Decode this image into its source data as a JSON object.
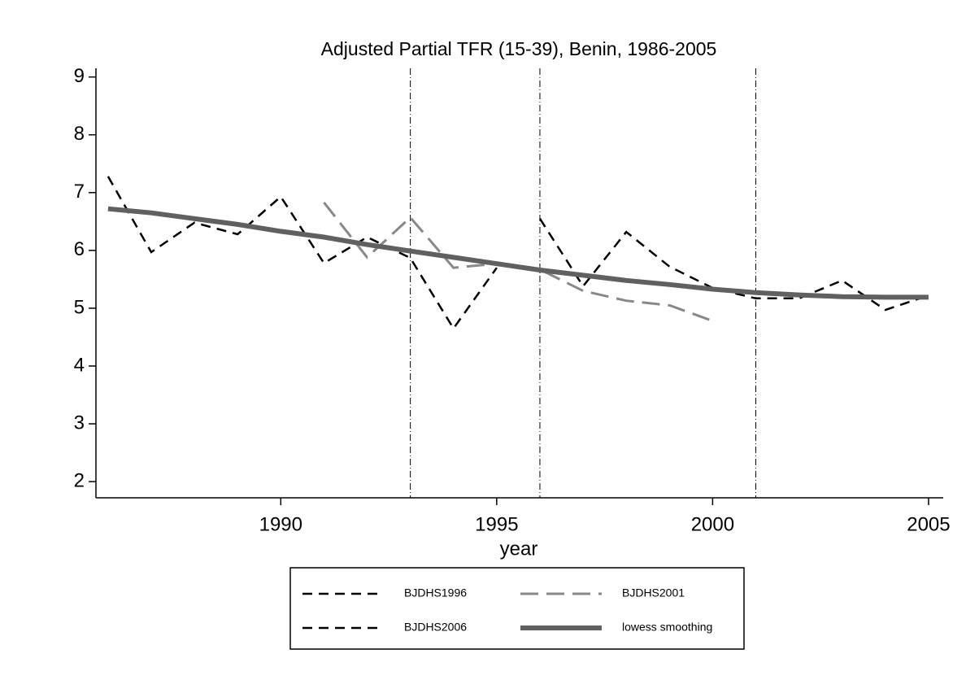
{
  "chart_data": {
    "type": "line",
    "title": "Adjusted Partial TFR (15-39), Benin, 1986-2005",
    "x_label": "year",
    "x": [
      1986,
      1987,
      1988,
      1989,
      1990,
      1991,
      1992,
      1993,
      1994,
      1995,
      1996,
      1997,
      1998,
      1999,
      2000,
      2001,
      2002,
      2003,
      2004,
      2005
    ],
    "series": [
      {
        "name": "BJDHS1996",
        "color": "#000000",
        "dash": "12 8",
        "width": 2.5,
        "values": [
          7.28,
          5.97,
          6.48,
          6.28,
          6.93,
          5.78,
          6.23,
          5.87,
          4.65,
          5.7,
          null,
          null,
          null,
          null,
          null,
          null,
          null,
          null,
          null,
          null
        ]
      },
      {
        "name": "BJDHS2001",
        "color": "#888888",
        "dash": "22 10",
        "width": 3,
        "values": [
          null,
          null,
          null,
          null,
          null,
          6.83,
          5.88,
          6.57,
          5.7,
          5.77,
          5.67,
          5.3,
          5.13,
          5.05,
          4.78,
          null,
          null,
          null,
          null,
          null
        ]
      },
      {
        "name": "BJDHS2006",
        "color": "#000000",
        "dash": "12 8",
        "width": 2.5,
        "values": [
          null,
          null,
          null,
          null,
          null,
          null,
          null,
          null,
          null,
          null,
          6.55,
          5.38,
          6.32,
          5.72,
          5.35,
          5.17,
          5.17,
          5.48,
          4.97,
          5.22
        ]
      },
      {
        "name": "lowess smoothing",
        "color": "#606060",
        "dash": "none",
        "width": 6,
        "values": [
          6.72,
          6.65,
          6.55,
          6.45,
          6.33,
          6.23,
          6.1,
          5.99,
          5.88,
          5.77,
          5.66,
          5.57,
          5.48,
          5.41,
          5.33,
          5.27,
          5.23,
          5.2,
          5.19,
          5.19
        ]
      }
    ],
    "xlim": [
      1985.72,
      2005.34
    ],
    "xticks": [
      1990,
      1995,
      2000,
      2005
    ],
    "ylim": [
      1.72,
      9.15
    ],
    "yticks": [
      2,
      3,
      4,
      5,
      6,
      7,
      8,
      9
    ],
    "xlines": [
      1993,
      1996,
      2001
    ],
    "legend": "bottom"
  }
}
